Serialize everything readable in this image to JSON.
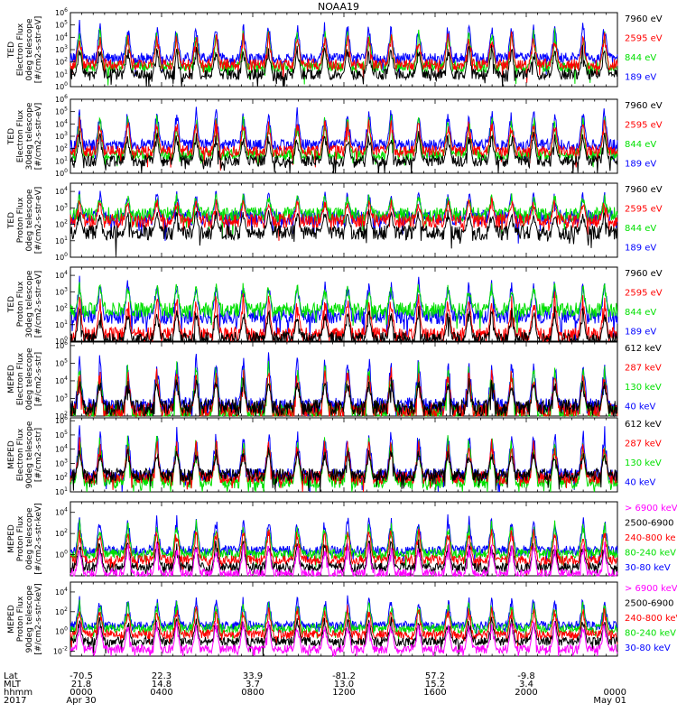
{
  "title": "NOAA19",
  "colors": {
    "black": "#000000",
    "red": "#ff0000",
    "green": "#00e000",
    "blue": "#0000ff",
    "magenta": "#ff00ff"
  },
  "chart_data": {
    "type": "line",
    "title": "NOAA19",
    "xlim_hours": [
      0,
      24
    ],
    "panels": [
      {
        "name": "ted-electron-0deg",
        "ylabel": [
          "TED",
          "Electron Flux",
          "0deg telescope",
          "[#/cm2-s-str-eV]"
        ],
        "yticks": [
          "10^6",
          "10^5",
          "10^4",
          "10^3",
          "10^2",
          "10^1",
          "10^0"
        ],
        "ylog": [
          0,
          6
        ],
        "legend": [
          {
            "text": "7960 eV",
            "color": "#000000"
          },
          {
            "text": "2595 eV",
            "color": "#ff0000"
          },
          {
            "text": "844 eV",
            "color": "#00e000"
          },
          {
            "text": "189 eV",
            "color": "#0000ff"
          }
        ],
        "base": {
          "blue": 2.3,
          "red": 1.8,
          "green": 1.6,
          "black": 1.0
        },
        "peak": 5.5
      },
      {
        "name": "ted-electron-30deg",
        "ylabel": [
          "TED",
          "Electron Flux",
          "30deg telescope",
          "[#/cm2-s-str-eV]"
        ],
        "yticks": [
          "10^6",
          "10^5",
          "10^4",
          "10^3",
          "10^2",
          "10^1",
          "10^0"
        ],
        "ylog": [
          0,
          6
        ],
        "legend": [
          {
            "text": "7960 eV",
            "color": "#000000"
          },
          {
            "text": "2595 eV",
            "color": "#ff0000"
          },
          {
            "text": "844 eV",
            "color": "#00e000"
          },
          {
            "text": "189 eV",
            "color": "#0000ff"
          }
        ],
        "base": {
          "blue": 2.3,
          "red": 1.8,
          "green": 1.5,
          "black": 1.0
        },
        "peak": 5.6
      },
      {
        "name": "ted-proton-0deg",
        "ylabel": [
          "TED",
          "Proton Flux",
          "0deg telescope",
          "[#/cm2-s-str-eV]"
        ],
        "yticks": [
          "10^4",
          "10^3",
          "10^2",
          "10^1",
          "10^0"
        ],
        "ylog": [
          0,
          4.5
        ],
        "legend": [
          {
            "text": "7960 eV",
            "color": "#000000"
          },
          {
            "text": "2595 eV",
            "color": "#ff0000"
          },
          {
            "text": "844 eV",
            "color": "#00e000"
          },
          {
            "text": "189 eV",
            "color": "#0000ff"
          }
        ],
        "base": {
          "blue": 2.4,
          "red": 2.2,
          "green": 2.6,
          "black": 1.5
        },
        "peak": 4.2
      },
      {
        "name": "ted-proton-30deg",
        "ylabel": [
          "TED",
          "Proton Flux",
          "30deg telescope",
          "[#/cm2-s-str-eV]"
        ],
        "yticks": [
          "10^4",
          "10^3",
          "10^2",
          "10^1",
          "10^0"
        ],
        "ylog": [
          0,
          4.5
        ],
        "legend": [
          {
            "text": "7960 eV",
            "color": "#000000"
          },
          {
            "text": "2595 eV",
            "color": "#ff0000"
          },
          {
            "text": "844 eV",
            "color": "#00e000"
          },
          {
            "text": "189 eV",
            "color": "#0000ff"
          }
        ],
        "base": {
          "blue": 1.5,
          "red": 0.4,
          "green": 1.9,
          "black": 0.1
        },
        "peak": 4.0
      },
      {
        "name": "meped-electron-0deg",
        "ylabel": [
          "MEPED",
          "Electron Flux",
          "0deg telescope",
          "[#/cm2-s-str]"
        ],
        "yticks": [
          "10^6",
          "10^5",
          "10^4",
          "10^3",
          "10^2"
        ],
        "ylog": [
          2,
          6.2
        ],
        "legend": [
          {
            "text": "612 keV",
            "color": "#000000"
          },
          {
            "text": "287 keV",
            "color": "#ff0000"
          },
          {
            "text": "130 keV",
            "color": "#00e000"
          },
          {
            "text": "40 keV",
            "color": "#0000ff"
          }
        ],
        "base": {
          "blue": 2.6,
          "red": 2.3,
          "green": 2.2,
          "black": 2.5
        },
        "peak": 5.8
      },
      {
        "name": "meped-electron-90deg",
        "ylabel": [
          "MEPED",
          "Electron Flux",
          "90deg telescope",
          "[#/cm2-s-str]"
        ],
        "yticks": [
          "10^6",
          "10^5",
          "10^4",
          "10^3",
          "10^2",
          "10^1"
        ],
        "ylog": [
          1,
          6.2
        ],
        "legend": [
          {
            "text": "612 keV",
            "color": "#000000"
          },
          {
            "text": "287 keV",
            "color": "#ff0000"
          },
          {
            "text": "130 keV",
            "color": "#00e000"
          },
          {
            "text": "40 keV",
            "color": "#0000ff"
          }
        ],
        "base": {
          "blue": 2.2,
          "red": 2.0,
          "green": 1.7,
          "black": 2.2
        },
        "peak": 5.8
      },
      {
        "name": "meped-proton-0deg",
        "ylabel": [
          "MEPED",
          "Proton Flux",
          "0deg telescope",
          "[#/cm2-s-str-keV]"
        ],
        "yticks": [
          "10^4",
          "10^2",
          "10^0"
        ],
        "ylog": [
          -2,
          5
        ],
        "legend": [
          {
            "text": "> 6900 keV",
            "color": "#ff00ff"
          },
          {
            "text": "2500-6900",
            "color": "#000000"
          },
          {
            "text": "240-800 ke",
            "color": "#ff0000"
          },
          {
            "text": "80-240 keV",
            "color": "#00e000"
          },
          {
            "text": "30-80 keV",
            "color": "#0000ff"
          }
        ],
        "base": {
          "blue": 0.4,
          "red": -0.5,
          "green": 0.1,
          "black": -1.2,
          "magenta": -1.8
        },
        "peak": 4.0
      },
      {
        "name": "meped-proton-90deg",
        "ylabel": [
          "MEPED",
          "Proton Flux",
          "90deg telescope",
          "[#/cm2-s-str-keV]"
        ],
        "yticks": [
          "10^4",
          "10^2",
          "10^0",
          "10^-2"
        ],
        "ylog": [
          -2.5,
          5
        ],
        "legend": [
          {
            "text": "> 6900 keV",
            "color": "#ff00ff"
          },
          {
            "text": "2500-6900",
            "color": "#000000"
          },
          {
            "text": "240-800 keV",
            "color": "#ff0000"
          },
          {
            "text": "80-240 keV",
            "color": "#00e000"
          },
          {
            "text": "30-80 keV",
            "color": "#0000ff"
          }
        ],
        "base": {
          "blue": 0.6,
          "red": -0.3,
          "green": 0.3,
          "black": -1.0,
          "magenta": -1.8
        },
        "peak": 3.8
      }
    ],
    "footer": {
      "rows": [
        {
          "label": "Lat",
          "values": [
            "-70.5",
            "22.3",
            "33.9",
            "-81.2",
            "57.2",
            "-9.8",
            ""
          ]
        },
        {
          "label": "MLT",
          "values": [
            "21.8",
            "14.8",
            "3.7",
            "13.0",
            "15.2",
            "3.4",
            ""
          ]
        },
        {
          "label": "hhmm",
          "values": [
            "0000",
            "0400",
            "0800",
            "1200",
            "1600",
            "2000",
            "0000"
          ]
        },
        {
          "label": "2017",
          "values": [
            "Apr 30",
            "",
            "",
            "",
            "",
            "",
            "May 01"
          ]
        }
      ]
    }
  }
}
